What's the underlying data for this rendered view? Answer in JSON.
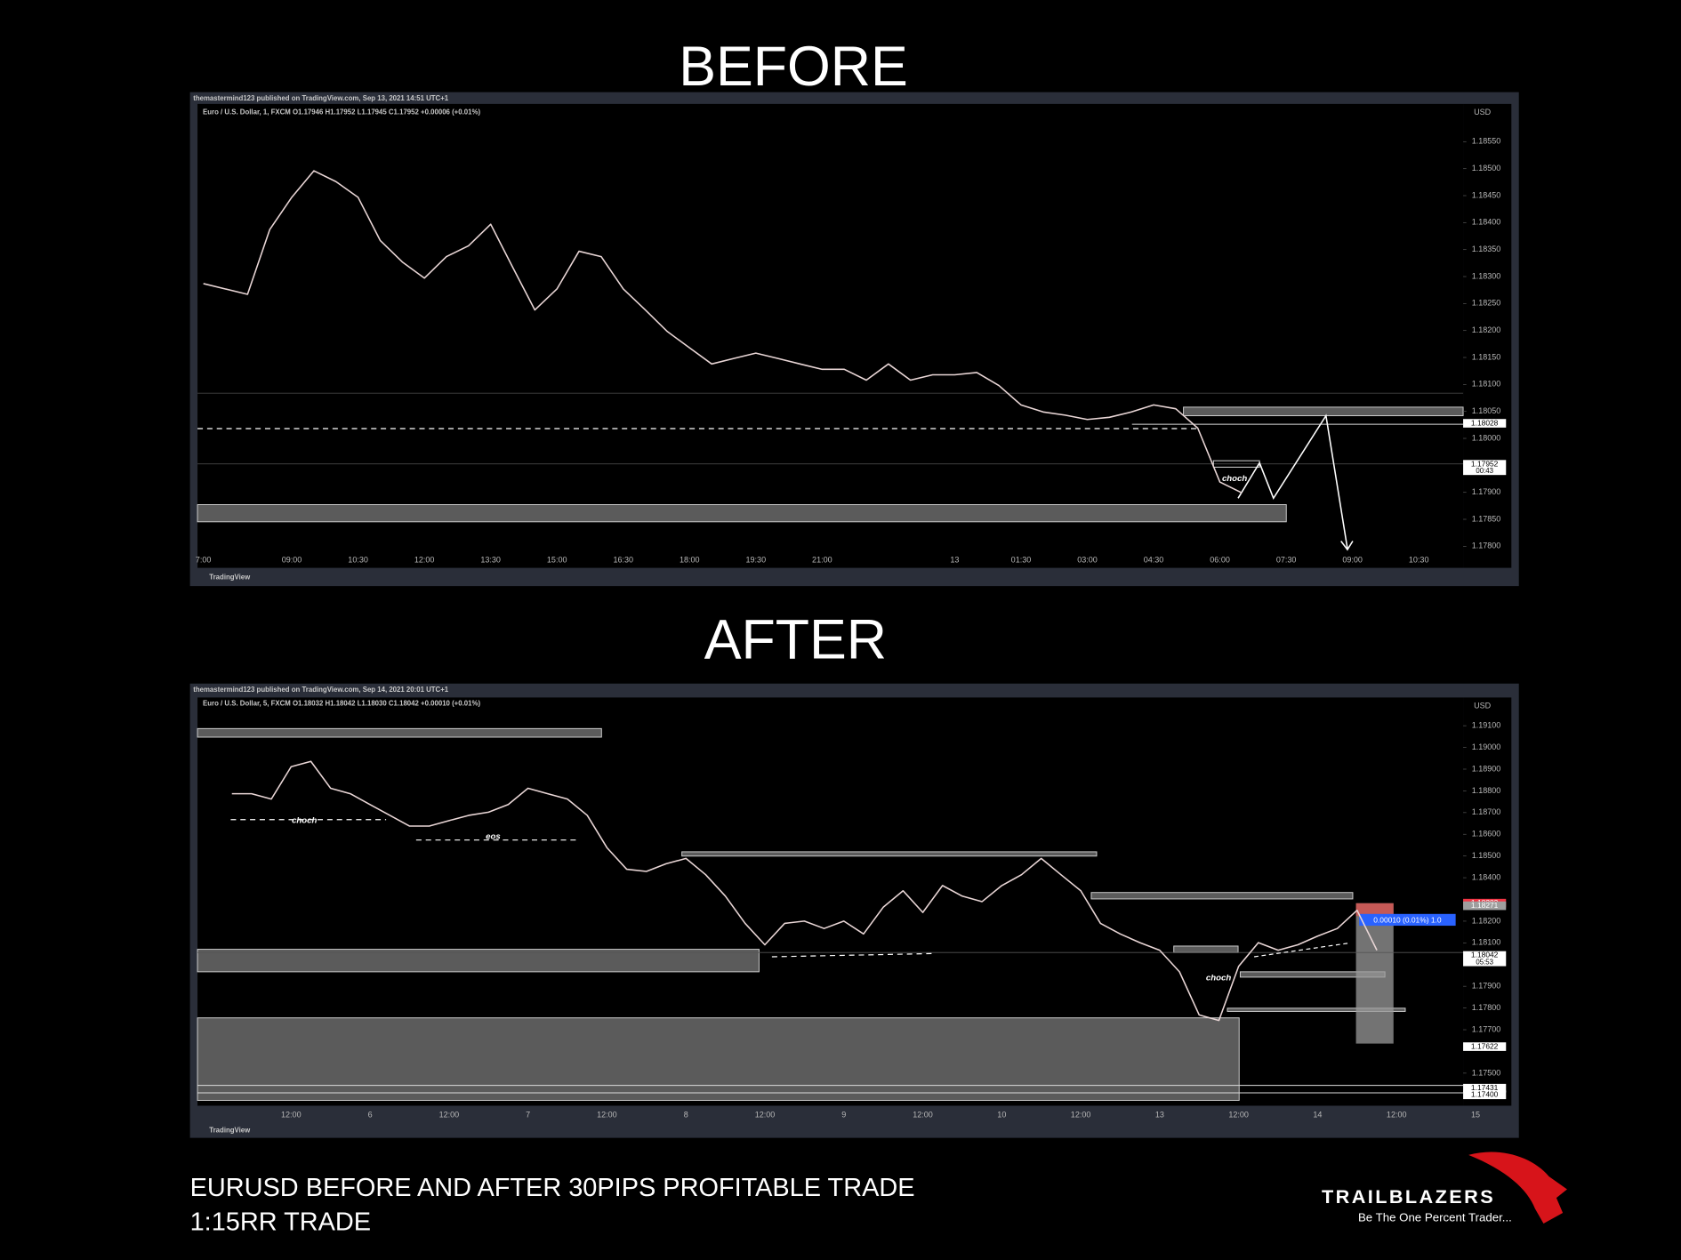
{
  "before_title": "BEFORE",
  "after_title": "AFTER",
  "chart_data": [
    {
      "type": "line",
      "publisher": "themastermind123 published on TradingView.com, Sep 13, 2021 14:51 UTC+1",
      "symbol": "Euro / U.S. Dollar, 1, FXCM O1.17946 H1.17952 L1.17945 C1.17952 +0.00006 (+0.01%)",
      "currency": "USD",
      "watermark": "TradingView",
      "color": "#e9d6d6",
      "categories": [
        "7:00",
        null,
        null,
        null,
        "09:00",
        null,
        null,
        "10:30",
        null,
        null,
        "12:00",
        null,
        null,
        "13:30",
        null,
        null,
        "15:00",
        null,
        null,
        "16:30",
        null,
        null,
        "18:00",
        null,
        null,
        "19:30",
        null,
        null,
        "21:00",
        null,
        null,
        null,
        null,
        null,
        "13",
        null,
        null,
        "01:30",
        null,
        null,
        "03:00",
        null,
        null,
        "04:30",
        null,
        null,
        "06:00",
        null,
        null,
        "07:30",
        null,
        null,
        "09:00",
        null,
        null,
        "10:30"
      ],
      "values": [
        1.18287,
        1.18277,
        1.18267,
        1.18387,
        1.18447,
        1.18496,
        1.18476,
        1.18447,
        1.18367,
        1.18327,
        1.18297,
        1.18337,
        1.18357,
        1.18397,
        1.18317,
        1.18238,
        1.18277,
        1.18347,
        1.18337,
        1.18277,
        1.18238,
        1.18198,
        1.18168,
        1.18138,
        1.18148,
        1.18158,
        1.18148,
        1.18138,
        1.18128,
        1.18128,
        1.18108,
        1.18138,
        1.18108,
        1.18118,
        1.18118,
        1.18122,
        1.18098,
        1.18062,
        1.18049,
        1.18043,
        1.18035,
        1.18039,
        1.18049,
        1.18062,
        1.18055,
        1.18019,
        1.17919,
        1.17899,
        null,
        null,
        null,
        null,
        null,
        null,
        null,
        null
      ],
      "ylim": [
        1.1776,
        1.1862
      ],
      "yticks": [
        {
          "value": 1.1855,
          "label": "1.18550"
        },
        {
          "value": 1.185,
          "label": "1.18500"
        },
        {
          "value": 1.1845,
          "label": "1.18450"
        },
        {
          "value": 1.184,
          "label": "1.18400"
        },
        {
          "value": 1.1835,
          "label": "1.18350"
        },
        {
          "value": 1.183,
          "label": "1.18300"
        },
        {
          "value": 1.1825,
          "label": "1.18250"
        },
        {
          "value": 1.182,
          "label": "1.18200"
        },
        {
          "value": 1.1815,
          "label": "1.18150"
        },
        {
          "value": 1.181,
          "label": "1.18100"
        },
        {
          "value": 1.1805,
          "label": "1.18050"
        },
        {
          "value": 1.18,
          "label": "1.18000"
        },
        {
          "value": 1.179,
          "label": "1.17900"
        },
        {
          "value": 1.1785,
          "label": "1.17850"
        },
        {
          "value": 1.178,
          "label": "1.17800"
        }
      ],
      "price_tags": [
        {
          "value": 1.18028,
          "label": "1.18028",
          "color": "#ffffff",
          "text_color": "#000000"
        },
        {
          "value": 1.17952,
          "label": "1.17952",
          "sub": "00:43",
          "color": "#ffffff",
          "text_color": "#000000"
        }
      ],
      "annotations": [
        "choch"
      ]
    },
    {
      "type": "line",
      "publisher": "themastermind123 published on TradingView.com, Sep 14, 2021 20:01 UTC+1",
      "symbol": "Euro / U.S. Dollar, 5, FXCM O1.18032 H1.18042 L1.18030 C1.18042 +0.00010 (+0.01%)",
      "currency": "USD",
      "watermark": "TradingView",
      "color": "#e9d6d6",
      "categories": [
        null,
        null,
        null,
        "12:00",
        null,
        null,
        null,
        "6",
        null,
        null,
        null,
        "12:00",
        null,
        null,
        null,
        "7",
        null,
        null,
        null,
        "12:00",
        null,
        null,
        null,
        "8",
        null,
        null,
        null,
        "12:00",
        null,
        null,
        null,
        "9",
        null,
        null,
        null,
        "12:00",
        null,
        null,
        null,
        "10",
        null,
        null,
        null,
        "12:00",
        null,
        null,
        null,
        "13",
        null,
        null,
        null,
        "12:00",
        null,
        null,
        null,
        "14",
        null,
        null,
        null,
        "12:00",
        null,
        null,
        null,
        "15"
      ],
      "values": [
        1.18787,
        1.18787,
        1.18762,
        1.18911,
        1.18936,
        1.18812,
        1.18787,
        1.18737,
        1.18687,
        1.18638,
        1.18638,
        1.18663,
        1.18687,
        1.18702,
        1.18737,
        1.18812,
        1.18787,
        1.18762,
        1.18687,
        1.18538,
        1.18439,
        1.18429,
        1.18464,
        1.18489,
        1.18414,
        1.18315,
        1.1819,
        1.18091,
        1.1819,
        1.182,
        1.18166,
        1.182,
        1.18141,
        1.18265,
        1.1834,
        1.1824,
        1.18364,
        1.18315,
        1.1829,
        1.18364,
        1.18414,
        1.18489,
        1.18414,
        1.1834,
        1.1819,
        1.18141,
        1.18101,
        1.18066,
        1.17967,
        1.17768,
        1.17743,
        1.17992,
        1.18101,
        1.18066,
        1.18091,
        1.18131,
        1.18166,
        1.1825,
        1.18066,
        null,
        null,
        null,
        null,
        null
      ],
      "ylim": [
        1.1735,
        1.1923
      ],
      "yticks": [
        {
          "value": 1.191,
          "label": "1.19100"
        },
        {
          "value": 1.19,
          "label": "1.19000"
        },
        {
          "value": 1.189,
          "label": "1.18900"
        },
        {
          "value": 1.188,
          "label": "1.18800"
        },
        {
          "value": 1.187,
          "label": "1.18700"
        },
        {
          "value": 1.186,
          "label": "1.18600"
        },
        {
          "value": 1.185,
          "label": "1.18500"
        },
        {
          "value": 1.184,
          "label": "1.18400"
        },
        {
          "value": 1.182,
          "label": "1.18200"
        },
        {
          "value": 1.181,
          "label": "1.18100"
        },
        {
          "value": 1.179,
          "label": "1.17900"
        },
        {
          "value": 1.178,
          "label": "1.17800"
        },
        {
          "value": 1.177,
          "label": "1.17700"
        },
        {
          "value": 1.175,
          "label": "1.17500"
        }
      ],
      "price_tags": [
        {
          "value": 1.18283,
          "label": "1.18283",
          "color": "#f23645",
          "text_color": "#ffffff"
        },
        {
          "value": 1.18271,
          "label": "1.18271",
          "color": "#9e9e9e",
          "text_color": "#ffffff"
        },
        {
          "value": 1.18042,
          "label": "1.18042",
          "sub": "05:53",
          "color": "#ffffff",
          "text_color": "#000000"
        },
        {
          "value": 1.17622,
          "label": "1.17622",
          "color": "#ffffff",
          "text_color": "#000000"
        },
        {
          "value": 1.17431,
          "label": "1.17431",
          "color": "#ffffff",
          "text_color": "#000000"
        },
        {
          "value": 1.174,
          "label": "1.17400",
          "color": "#ffffff",
          "text_color": "#000000"
        }
      ],
      "annotations": [
        "choch",
        "eos",
        "choch",
        "0.00010 (0.01%) 1.0"
      ]
    }
  ],
  "footer": {
    "lines": [
      "EURUSD BEFORE AND AFTER 30PIPS PROFITABLE TRADE",
      "1:15RR TRADE"
    ]
  },
  "logo": {
    "name": "TRAILBLAZERS",
    "tagline": "Be The One Percent Trader..."
  }
}
